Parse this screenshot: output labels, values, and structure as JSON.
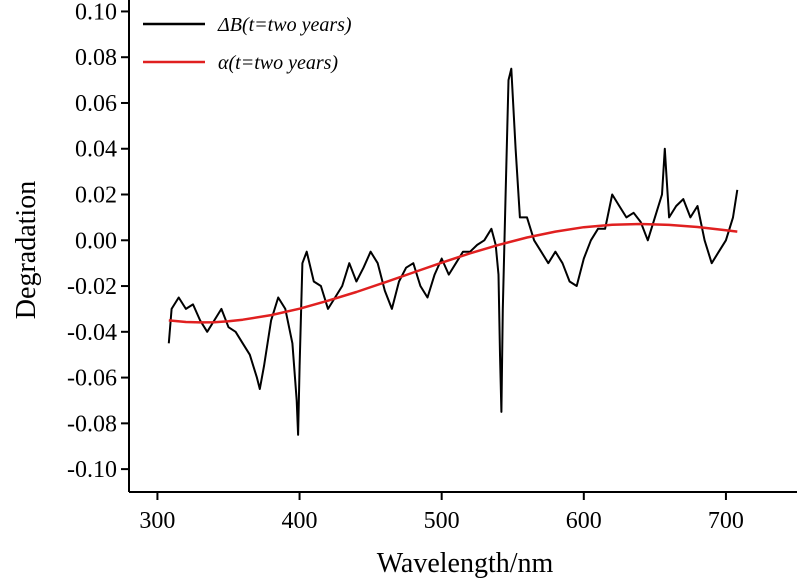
{
  "chart_data": {
    "type": "line",
    "xlabel": "Wavelength/nm",
    "ylabel": "Degradation",
    "xlim": [
      280,
      750
    ],
    "ylim": [
      -0.11,
      0.105
    ],
    "x_ticks": [
      300,
      400,
      500,
      600,
      700
    ],
    "y_ticks": [
      -0.1,
      -0.08,
      -0.06,
      -0.04,
      -0.02,
      0.0,
      0.02,
      0.04,
      0.06,
      0.08,
      0.1
    ],
    "x_tick_labels": [
      "300",
      "400",
      "500",
      "600",
      "700"
    ],
    "y_tick_labels": [
      "-0.10",
      "-0.08",
      "-0.06",
      "-0.04",
      "-0.02",
      "0.00",
      "0.02",
      "0.04",
      "0.06",
      "0.08",
      "0.10"
    ],
    "grid": false,
    "legend_position": "top-left",
    "series": [
      {
        "name": "ΔB(t=two years)",
        "color": "#000000",
        "x": [
          308,
          310,
          315,
          320,
          325,
          330,
          335,
          340,
          345,
          350,
          355,
          360,
          365,
          370,
          372,
          375,
          380,
          385,
          390,
          395,
          398,
          399,
          400,
          402,
          405,
          410,
          415,
          420,
          425,
          430,
          435,
          440,
          445,
          450,
          455,
          460,
          465,
          470,
          475,
          480,
          485,
          490,
          495,
          500,
          505,
          510,
          515,
          520,
          525,
          530,
          535,
          538,
          540,
          541,
          542,
          543,
          545,
          547,
          549,
          552,
          555,
          560,
          565,
          570,
          575,
          580,
          585,
          590,
          595,
          600,
          605,
          610,
          615,
          620,
          625,
          630,
          635,
          640,
          645,
          650,
          655,
          657,
          658,
          660,
          665,
          670,
          675,
          680,
          685,
          690,
          695,
          700,
          705,
          708
        ],
        "y": [
          -0.045,
          -0.03,
          -0.025,
          -0.03,
          -0.028,
          -0.035,
          -0.04,
          -0.035,
          -0.03,
          -0.038,
          -0.04,
          -0.045,
          -0.05,
          -0.06,
          -0.065,
          -0.055,
          -0.035,
          -0.025,
          -0.03,
          -0.045,
          -0.07,
          -0.085,
          -0.055,
          -0.01,
          -0.005,
          -0.018,
          -0.02,
          -0.03,
          -0.025,
          -0.02,
          -0.01,
          -0.018,
          -0.012,
          -0.005,
          -0.01,
          -0.022,
          -0.03,
          -0.018,
          -0.012,
          -0.01,
          -0.02,
          -0.025,
          -0.015,
          -0.008,
          -0.015,
          -0.01,
          -0.005,
          -0.005,
          -0.002,
          0.0,
          0.005,
          -0.002,
          -0.015,
          -0.05,
          -0.075,
          -0.03,
          0.02,
          0.07,
          0.075,
          0.04,
          0.01,
          0.01,
          0.0,
          -0.005,
          -0.01,
          -0.005,
          -0.01,
          -0.018,
          -0.02,
          -0.008,
          0.0,
          0.005,
          0.005,
          0.02,
          0.015,
          0.01,
          0.012,
          0.008,
          0.0,
          0.01,
          0.02,
          0.04,
          0.03,
          0.01,
          0.015,
          0.018,
          0.01,
          0.015,
          0.0,
          -0.01,
          -0.005,
          0.0,
          0.01,
          0.022
        ]
      },
      {
        "name": "α(t=two years)",
        "color": "#e02020",
        "x": [
          308,
          320,
          330,
          340,
          350,
          360,
          380,
          400,
          420,
          440,
          460,
          480,
          500,
          520,
          540,
          560,
          580,
          600,
          620,
          640,
          660,
          680,
          700,
          708
        ],
        "y": [
          -0.035,
          -0.0357,
          -0.0359,
          -0.0358,
          -0.0354,
          -0.0347,
          -0.0327,
          -0.0299,
          -0.0264,
          -0.0226,
          -0.0184,
          -0.0141,
          -0.0098,
          -0.0057,
          -0.002,
          0.0012,
          0.0038,
          0.0057,
          0.0068,
          0.0071,
          0.0067,
          0.0058,
          0.0044,
          0.0038
        ]
      }
    ]
  }
}
